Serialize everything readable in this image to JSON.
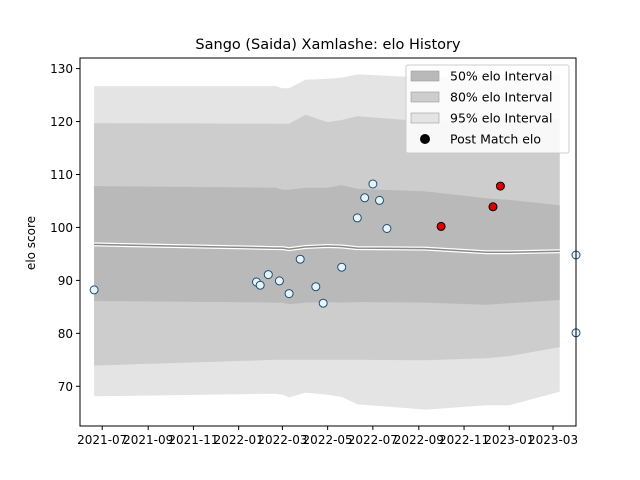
{
  "chart_data": {
    "type": "line",
    "title": "Sango (Saida) Xamlashe: elo History",
    "xlabel": "",
    "ylabel": "elo score",
    "ylim": [
      62.5,
      132
    ],
    "xlim": [
      "2021-06-01",
      "2023-04-01"
    ],
    "grid": false,
    "legend_position": "top-right",
    "x_ticks": [
      "2021-07",
      "2021-09",
      "2021-11",
      "2022-01",
      "2022-03",
      "2022-05",
      "2022-07",
      "2022-09",
      "2022-11",
      "2023-01",
      "2023-03"
    ],
    "y_ticks": [
      70,
      80,
      90,
      100,
      110,
      120,
      130
    ],
    "colors": {
      "band95": "#e4e4e4",
      "band80": "#cdcdcd",
      "band50": "#b9b9b9",
      "mean_line": "#888888",
      "point_fill": "#e8f4f8",
      "point_stroke": "#1f4e79",
      "highlight_fill": "#dd0000"
    },
    "legend": [
      {
        "label": "50% elo Interval",
        "kind": "band50"
      },
      {
        "label": "80% elo Interval",
        "kind": "band80"
      },
      {
        "label": "95% elo Interval",
        "kind": "band95"
      },
      {
        "label": "Post Match elo",
        "kind": "marker"
      }
    ],
    "bands": {
      "x": [
        "2021-06-20",
        "2022-02-20",
        "2022-03-01",
        "2022-03-10",
        "2022-04-01",
        "2022-05-01",
        "2022-05-20",
        "2022-06-10",
        "2022-09-10",
        "2022-12-01",
        "2023-01-01",
        "2023-03-10"
      ],
      "p95_hi": [
        126.7,
        126.7,
        126.3,
        126.3,
        127.9,
        128.1,
        128.3,
        128.9,
        128.3,
        128.9,
        128.9,
        128.9
      ],
      "p80_hi": [
        119.7,
        119.6,
        119.6,
        119.6,
        121.3,
        119.9,
        120.3,
        121.0,
        120.0,
        120.5,
        120.5,
        120.5
      ],
      "p50_hi": [
        107.8,
        107.5,
        107.1,
        107.1,
        107.5,
        107.5,
        108.0,
        107.3,
        106.8,
        105.5,
        105.2,
        104.2
      ],
      "mean": [
        96.8,
        96.1,
        96.1,
        95.9,
        96.3,
        96.5,
        96.4,
        96.1,
        96.0,
        95.3,
        95.3,
        95.5
      ],
      "p50_lo": [
        86.1,
        85.8,
        85.8,
        85.5,
        85.8,
        85.9,
        85.8,
        85.9,
        85.8,
        85.4,
        85.7,
        86.3
      ],
      "p80_lo": [
        73.9,
        75.0,
        75.0,
        75.0,
        75.0,
        75.0,
        75.0,
        75.0,
        74.9,
        75.3,
        75.7,
        77.4
      ],
      "p95_lo": [
        68.1,
        68.6,
        68.4,
        67.9,
        68.8,
        68.4,
        68.0,
        66.6,
        65.6,
        66.4,
        66.4,
        69.0
      ]
    },
    "points": [
      {
        "x": "2021-06-20",
        "y": 88.2,
        "highlight": false
      },
      {
        "x": "2022-01-25",
        "y": 89.7,
        "highlight": false
      },
      {
        "x": "2022-01-30",
        "y": 89.1,
        "highlight": false
      },
      {
        "x": "2022-02-10",
        "y": 91.1,
        "highlight": false
      },
      {
        "x": "2022-02-25",
        "y": 89.9,
        "highlight": false
      },
      {
        "x": "2022-03-10",
        "y": 87.5,
        "highlight": false
      },
      {
        "x": "2022-03-25",
        "y": 94.0,
        "highlight": false
      },
      {
        "x": "2022-04-15",
        "y": 88.8,
        "highlight": false
      },
      {
        "x": "2022-04-25",
        "y": 85.7,
        "highlight": false
      },
      {
        "x": "2022-05-20",
        "y": 92.5,
        "highlight": false
      },
      {
        "x": "2022-06-10",
        "y": 101.8,
        "highlight": false
      },
      {
        "x": "2022-06-20",
        "y": 105.6,
        "highlight": false
      },
      {
        "x": "2022-07-01",
        "y": 108.2,
        "highlight": false
      },
      {
        "x": "2022-07-10",
        "y": 105.1,
        "highlight": false
      },
      {
        "x": "2022-07-20",
        "y": 99.8,
        "highlight": false
      },
      {
        "x": "2022-10-01",
        "y": 100.2,
        "highlight": true
      },
      {
        "x": "2022-12-10",
        "y": 103.9,
        "highlight": true
      },
      {
        "x": "2022-12-20",
        "y": 107.8,
        "highlight": true
      },
      {
        "x": "2023-04-01",
        "y": 80.1,
        "highlight": false
      },
      {
        "x": "2023-04-01",
        "y": 94.8,
        "highlight": false
      }
    ]
  }
}
